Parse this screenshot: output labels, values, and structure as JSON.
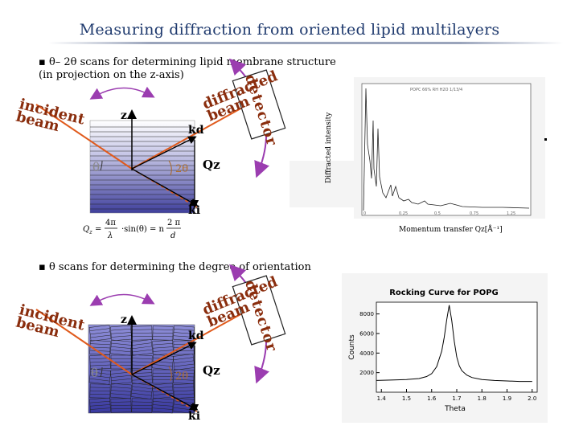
{
  "title": "Measuring diffraction from oriented lipid multilayers",
  "section1": {
    "bullet_line1": "▪ θ– 2θ scans for determining lipid membrane structure",
    "bullet_line2": "(in projection on the z-axis)",
    "diagram": {
      "incident_beam": "incident beam",
      "detector": "detector",
      "diffracted_beam": "diffracted beam",
      "z_axis": "z",
      "kd": "kd",
      "ki": "ki",
      "qz": "Qz",
      "theta": "θ",
      "two_theta": "2θ"
    },
    "formula": "Q_z = (4π/λ) sin(θ) = n (2π/d)",
    "plot": {
      "y_label": "Diffracted intensity",
      "x_label": "Momentum transfer Qz[Å⁻¹]",
      "header": "POPC  66%  RH  H2O  1/13/4"
    }
  },
  "section2": {
    "bullet": "▪ θ scans for determining the degree of orientation",
    "diagram": {
      "incident_beam": "incident beam",
      "detector": "detector",
      "diffracted_beam": "diffracted beam",
      "z_axis": "z",
      "kd": "kd",
      "ki": "ki",
      "qz": "Qz",
      "theta": "θ",
      "two_theta": "2θ"
    },
    "chart_data": {
      "type": "line",
      "title": "Rocking Curve for POPG",
      "xlabel": "Theta",
      "ylabel": "Counts",
      "xlim": [
        1.38,
        2.02
      ],
      "ylim": [
        0,
        9200
      ],
      "xticks": [
        "1.4",
        "1.5",
        "1.6",
        "1.7",
        "1.8",
        "1.9",
        "2.0"
      ],
      "yticks": [
        "2000",
        "4000",
        "6000",
        "8000"
      ],
      "series": [
        {
          "x": [
            1.38,
            1.45,
            1.5,
            1.55,
            1.58,
            1.6,
            1.62,
            1.64,
            1.65,
            1.66,
            1.67,
            1.68,
            1.69,
            1.7,
            1.71,
            1.72,
            1.74,
            1.76,
            1.8,
            1.85,
            1.9,
            1.95,
            2.0
          ],
          "y": [
            1200,
            1250,
            1300,
            1400,
            1600,
            1900,
            2600,
            4200,
            5600,
            7400,
            8900,
            7300,
            5200,
            3600,
            2700,
            2200,
            1750,
            1500,
            1300,
            1200,
            1150,
            1100,
            1100
          ]
        }
      ]
    }
  },
  "colors": {
    "title": "#1f3a6e",
    "beam": "#e05a1c",
    "detector_arrow": "#9b3db0",
    "label_text": "#8a2d0d",
    "stack_top": "#ffffff",
    "stack_bottom": "#4a4aa8"
  }
}
